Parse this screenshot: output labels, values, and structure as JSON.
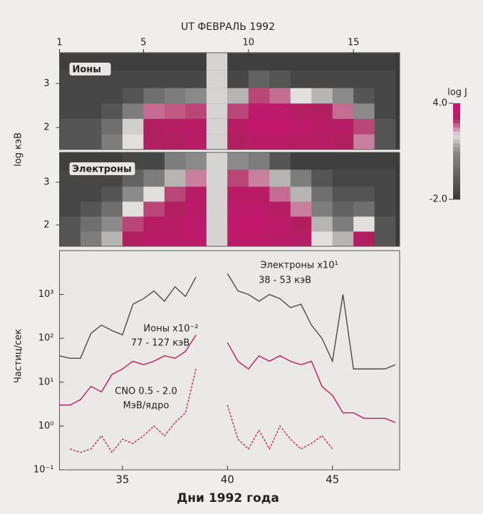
{
  "chart_data": [
    {
      "type": "heatmap",
      "title": "UT ФЕВРАЛЬ 1992",
      "label": "Ионы",
      "ylabel": "log кэВ",
      "xlim": [
        1,
        17.2
      ],
      "xticks": [
        1,
        5,
        10,
        15
      ],
      "ylim": [
        1.5,
        3.7
      ],
      "yticks": [
        2,
        3
      ],
      "x_edges": [
        1,
        2,
        3,
        4,
        5,
        6,
        7,
        8,
        9,
        10,
        11,
        12,
        13,
        14,
        15,
        16,
        17
      ],
      "y_edges": [
        1.5,
        1.85,
        2.2,
        2.55,
        2.9,
        3.3,
        3.7
      ],
      "z": [
        [
          -1,
          -1,
          0.5,
          2,
          3,
          3,
          3.2,
          null,
          3,
          3.3,
          3.3,
          3.2,
          3.2,
          3,
          2.5,
          -1
        ],
        [
          -1,
          -1,
          0,
          1.8,
          3,
          3.2,
          3.3,
          null,
          3.2,
          3.5,
          3.5,
          3.4,
          3.3,
          3.2,
          2.8,
          -1
        ],
        [
          -1.5,
          -1.5,
          -1,
          0.5,
          2.6,
          2.7,
          2.8,
          null,
          2.8,
          3.4,
          3.4,
          3.2,
          3,
          2.6,
          1,
          -1.5
        ],
        [
          -1.5,
          -1.5,
          -1.5,
          -1,
          0,
          0.5,
          1,
          null,
          1.5,
          2.8,
          2.6,
          2,
          1.5,
          1,
          -1,
          -1.5
        ],
        [
          -1.5,
          -1.5,
          -1.5,
          -1.5,
          -1.5,
          -1.5,
          -1.5,
          null,
          -1.5,
          -0.5,
          -1,
          -1.5,
          -1.5,
          -1.5,
          -1.5,
          -1.5
        ],
        [
          -1.8,
          -1.8,
          -1.8,
          -1.8,
          -1.8,
          -1.8,
          -1.8,
          null,
          -1.8,
          -1.8,
          -1.8,
          -1.8,
          -1.8,
          -1.8,
          -1.8,
          -1.8
        ]
      ],
      "colorscale": [
        [
          -2,
          "#3a3a3a"
        ],
        [
          1,
          "#8a8a8a"
        ],
        [
          2,
          "#e2e0de"
        ],
        [
          3,
          "#b0205f"
        ],
        [
          4,
          "#d0107a"
        ]
      ],
      "colorbar_label": "log J",
      "colorbar_ticks": [
        {
          "value": 4,
          "label": "4.0"
        },
        {
          "value": -2,
          "label": "-2.0"
        }
      ]
    },
    {
      "type": "heatmap",
      "label": "Электроны",
      "xlim": [
        1,
        17.2
      ],
      "ylim": [
        1.5,
        3.7
      ],
      "yticks": [
        2,
        3
      ],
      "x_edges": [
        1,
        2,
        3,
        4,
        5,
        6,
        7,
        8,
        9,
        10,
        11,
        12,
        13,
        14,
        15,
        16,
        17
      ],
      "y_edges": [
        1.5,
        1.85,
        2.2,
        2.55,
        2.9,
        3.3,
        3.7
      ],
      "z": [
        [
          -1,
          0.5,
          1.5,
          3,
          3.3,
          3.3,
          3.4,
          null,
          3.4,
          3.4,
          3.3,
          3.2,
          2,
          1.5,
          3,
          -1
        ],
        [
          -1,
          0,
          1,
          2.8,
          3.2,
          3.3,
          3.4,
          null,
          3.5,
          3.5,
          3.4,
          3,
          1.5,
          0.5,
          2,
          -1
        ],
        [
          -1.5,
          -1,
          0,
          2,
          2.8,
          3,
          3.3,
          null,
          3.4,
          3.4,
          3.2,
          2.5,
          0.5,
          -0.5,
          0,
          -1.5
        ],
        [
          -1.5,
          -1.5,
          -1,
          1,
          2,
          2.8,
          3.2,
          null,
          3.3,
          3.3,
          2.6,
          1.5,
          0,
          -1,
          -1,
          -1.5
        ],
        [
          -1.5,
          -1.5,
          -1.5,
          -0.5,
          0.5,
          1.5,
          2.5,
          null,
          2.8,
          2.5,
          1.5,
          0.5,
          -1,
          -1.5,
          -1.5,
          -1.5
        ],
        [
          -1.8,
          -1.8,
          -1.8,
          -1.5,
          -1.5,
          0.5,
          1,
          null,
          1,
          0.5,
          -1,
          -1.8,
          -1.8,
          -1.8,
          -1.8,
          -1.8
        ]
      ]
    },
    {
      "type": "line",
      "xlabel": "Дни 1992 года",
      "ylabel": "Частиц/сек",
      "log_y": true,
      "xlim": [
        32,
        48.2
      ],
      "xticks": [
        35,
        40,
        45
      ],
      "ylim": [
        0.1,
        10000
      ],
      "yticks": [
        {
          "value": 0.1,
          "label": "10⁻¹"
        },
        {
          "value": 1,
          "label": "10⁰"
        },
        {
          "value": 10,
          "label": "10¹"
        },
        {
          "value": 100,
          "label": "10²"
        },
        {
          "value": 1000,
          "label": "10³"
        }
      ],
      "x": [
        32,
        32.5,
        33,
        33.5,
        34,
        34.5,
        35,
        35.5,
        36,
        36.5,
        37,
        37.5,
        38,
        38.5,
        39,
        39.5,
        40,
        40.5,
        41,
        41.5,
        42,
        42.5,
        43,
        43.5,
        44,
        44.5,
        45,
        45.5,
        46,
        46.5,
        47,
        47.5,
        48
      ],
      "series": [
        {
          "name": "Электроны x10¹",
          "color": "#4a4a4a",
          "values": [
            40,
            35,
            35,
            130,
            200,
            150,
            120,
            600,
            800,
            1200,
            700,
            1500,
            900,
            2500,
            null,
            null,
            3000,
            1200,
            1000,
            700,
            1000,
            800,
            500,
            600,
            200,
            100,
            30,
            1000,
            20,
            20,
            20,
            20,
            25
          ]
        },
        {
          "name": "Ионы x10⁻²",
          "color": "#c2185b",
          "values": [
            3,
            3,
            4,
            8,
            6,
            15,
            20,
            30,
            25,
            30,
            40,
            35,
            50,
            120,
            null,
            null,
            80,
            30,
            20,
            40,
            30,
            40,
            30,
            25,
            30,
            8,
            5,
            2,
            2,
            1.5,
            1.5,
            1.5,
            1.2
          ]
        },
        {
          "name": "CNO 0.5 - 2.0",
          "color": "#d81b60",
          "values": [
            null,
            0.3,
            0.25,
            0.3,
            0.6,
            0.25,
            0.5,
            0.4,
            0.6,
            1,
            0.6,
            1.2,
            2,
            20,
            null,
            null,
            3,
            0.5,
            0.3,
            0.8,
            0.3,
            1,
            0.5,
            0.3,
            0.4,
            0.6,
            0.3,
            null,
            null,
            null,
            null,
            null,
            null
          ]
        }
      ],
      "annotations": [
        "38 - 53 кэВ",
        "77 - 127 кэВ",
        "МэВ/ядро"
      ]
    }
  ]
}
